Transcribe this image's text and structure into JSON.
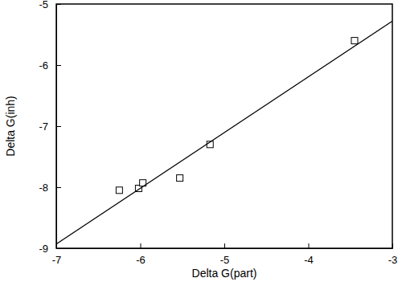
{
  "chart_data": {
    "type": "scatter",
    "x_label": "Delta G(part)",
    "y_label": "Delta G(inh)",
    "xlim": [
      -7,
      -3
    ],
    "xticks": [
      -7,
      -6,
      -5,
      -4,
      -3
    ],
    "ylim": [
      -9,
      -5
    ],
    "yticks": [
      -9,
      -8,
      -7,
      -6,
      -5
    ],
    "series": [
      {
        "type": "scatter",
        "marker": "square",
        "color": "#000000",
        "x": [
          -6.25,
          -6.02,
          -5.97,
          -5.53,
          -5.17,
          -3.45
        ],
        "values": [
          -8.05,
          -8.02,
          -7.93,
          -7.85,
          -7.3,
          -5.6
        ]
      },
      {
        "type": "line",
        "line_style": "solid",
        "color": "#000000",
        "x": [
          -7,
          -3
        ],
        "values": [
          -8.93,
          -5.28
        ]
      }
    ]
  }
}
